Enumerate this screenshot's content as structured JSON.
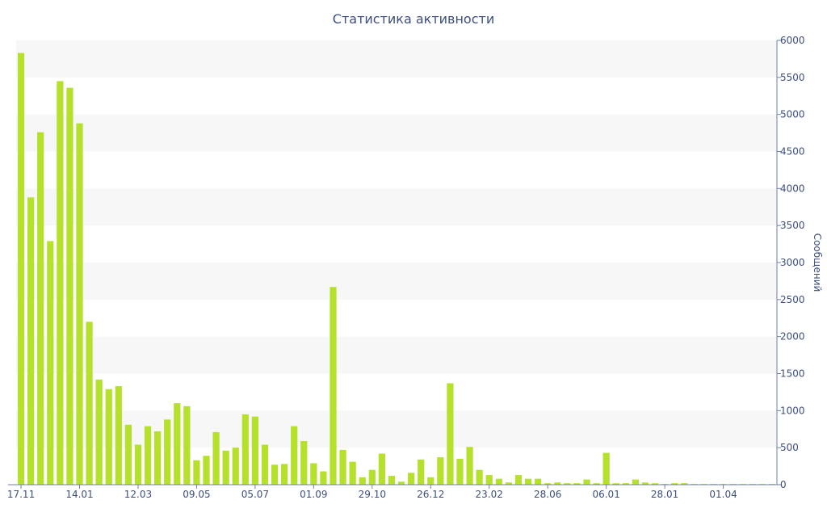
{
  "chart_data": {
    "type": "bar",
    "title": "Статистика активности",
    "ylabel": "Сообщений",
    "xlabel": "",
    "y_axis_side": "right",
    "ylim": [
      0,
      6000
    ],
    "y_ticks": [
      0,
      500,
      1000,
      1500,
      2000,
      2500,
      3000,
      3500,
      4000,
      4500,
      5000,
      5500,
      6000
    ],
    "x_tick_labels": [
      {
        "label": "17.11",
        "index": 0
      },
      {
        "label": "14.01",
        "index": 6
      },
      {
        "label": "12.03",
        "index": 12
      },
      {
        "label": "09.05",
        "index": 18
      },
      {
        "label": "05.07",
        "index": 24
      },
      {
        "label": "01.09",
        "index": 30
      },
      {
        "label": "29.10",
        "index": 36
      },
      {
        "label": "26.12",
        "index": 42
      },
      {
        "label": "23.02",
        "index": 48
      },
      {
        "label": "28.06",
        "index": 54
      },
      {
        "label": "06.01",
        "index": 60
      },
      {
        "label": "28.01",
        "index": 66
      },
      {
        "label": "01.04",
        "index": 72
      }
    ],
    "bar_color": "#b5e02c",
    "grid": "horizontal bands",
    "values": [
      5830,
      3880,
      4760,
      3290,
      5450,
      5360,
      4880,
      2200,
      1420,
      1290,
      1330,
      810,
      540,
      790,
      720,
      880,
      1100,
      1060,
      330,
      390,
      710,
      460,
      500,
      950,
      920,
      540,
      270,
      280,
      790,
      590,
      290,
      180,
      2670,
      470,
      310,
      100,
      200,
      420,
      120,
      40,
      160,
      340,
      100,
      370,
      1370,
      350,
      510,
      200,
      130,
      80,
      30,
      130,
      80,
      80,
      20,
      30,
      20,
      20,
      70,
      20,
      430,
      20,
      20,
      70,
      30,
      20,
      10,
      20,
      20,
      10,
      10,
      10,
      10,
      10,
      10,
      10,
      10,
      10
    ]
  }
}
